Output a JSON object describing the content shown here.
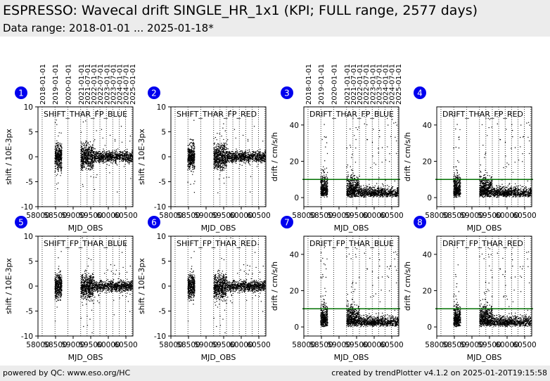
{
  "header": {
    "title": "ESPRESSO: Wavecal drift SINGLE_HR_1x1 (KPI; FULL range, 2577 days)",
    "subtitle": "Data range: 2018-01-01 ... 2025-01-18*"
  },
  "footer": {
    "left": "powered by QC: www.eso.org/HC",
    "right": "created by trendPlotter v4.1.2 on 2025-01-20T19:15:58"
  },
  "colors": {
    "header_bg": "#ececec",
    "badge": "#0000ee",
    "threshold_line": "#007000",
    "points": "#000000"
  },
  "date_ticks": [
    "2018-01-01",
    "2019-01-01",
    "2020-01-01",
    "2021-01-01",
    "2021-07-01",
    "2022-01-01",
    "2022-07-01",
    "2023-01-01",
    "2023-07-01",
    "2024-01-01",
    "2024-07-01",
    "2025-01-01"
  ],
  "date_ticks_upper_row": [
    "2018-01-01",
    "2019-01-01",
    "2020-01-01",
    "2021-01-01",
    "2021-07-01",
    "2022-01-01",
    "2022-07-01",
    "2023-01-01",
    "2023-07-01",
    "2024-01-01",
    "2024-07-01",
    "2025-01-01"
  ],
  "chart_data": [
    {
      "id": 1,
      "badge": "1",
      "type": "scatter",
      "title": "SHIFT_THAR_FP_BLUE",
      "xlabel": "MJD_OBS",
      "ylabel": "shift / 10E-3px",
      "xlim": [
        58000,
        60700
      ],
      "ylim": [
        -10,
        10
      ],
      "yticks": [
        -10,
        -5,
        0,
        5,
        10
      ],
      "xticks": [
        "58000",
        "58500",
        "59000",
        "59500",
        "60000",
        "60500"
      ],
      "kind": "shift",
      "threshold": null,
      "show_date_axis": true
    },
    {
      "id": 2,
      "badge": "2",
      "type": "scatter",
      "title": "SHIFT_THAR_FP_RED",
      "xlabel": "MJD_OBS",
      "ylabel": "shift / 10E-3px",
      "xlim": [
        58000,
        60700
      ],
      "ylim": [
        -10,
        10
      ],
      "yticks": [
        -10,
        -5,
        0,
        5,
        10
      ],
      "xticks": [
        "58000",
        "58500",
        "59000",
        "59500",
        "60000",
        "60500"
      ],
      "kind": "shift",
      "threshold": null,
      "show_date_axis": false
    },
    {
      "id": 3,
      "badge": "3",
      "type": "scatter",
      "title": "DRIFT_THAR_FP_BLUE",
      "xlabel": "MJD_OBS",
      "ylabel": "drift / cm/s/h",
      "xlim": [
        58000,
        60700
      ],
      "ylim": [
        -5,
        50
      ],
      "yticks": [
        0,
        20,
        40
      ],
      "xticks": [
        "58000",
        "58500",
        "59000",
        "59500",
        "60000",
        "60500"
      ],
      "kind": "drift",
      "threshold": 10,
      "show_date_axis": true
    },
    {
      "id": 4,
      "badge": "4",
      "type": "scatter",
      "title": "DRIFT_THAR_FP_RED",
      "xlabel": "MJD_OBS",
      "ylabel": "drift / cm/s/h",
      "xlim": [
        58000,
        60700
      ],
      "ylim": [
        -5,
        50
      ],
      "yticks": [
        0,
        20,
        40
      ],
      "xticks": [
        "58000",
        "58500",
        "59000",
        "59500",
        "60000",
        "60500"
      ],
      "kind": "drift",
      "threshold": 10,
      "show_date_axis": false
    },
    {
      "id": 5,
      "badge": "5",
      "type": "scatter",
      "title": "SHIFT_FP_THAR_BLUE",
      "xlabel": "MJD_OBS",
      "ylabel": "shift / 10E-3px",
      "xlim": [
        58000,
        60700
      ],
      "ylim": [
        -10,
        10
      ],
      "yticks": [
        -10,
        -5,
        0,
        5,
        10
      ],
      "xticks": [
        "58000",
        "58500",
        "59000",
        "59500",
        "60000",
        "60500"
      ],
      "kind": "shift",
      "threshold": null,
      "show_date_axis": false
    },
    {
      "id": 6,
      "badge": "6",
      "type": "scatter",
      "title": "SHIFT_FP_THAR_RED",
      "xlabel": "MJD_OBS",
      "ylabel": "shift / 10E-3px",
      "xlim": [
        58000,
        60700
      ],
      "ylim": [
        -10,
        10
      ],
      "yticks": [
        -10,
        -5,
        0,
        5,
        10
      ],
      "xticks": [
        "58000",
        "58500",
        "59000",
        "59500",
        "60000",
        "60500"
      ],
      "kind": "shift",
      "threshold": null,
      "show_date_axis": false
    },
    {
      "id": 7,
      "badge": "7",
      "type": "scatter",
      "title": "DRIFT_FP_THAR_BLUE",
      "xlabel": "MJD_OBS",
      "ylabel": "drift / cm/s/h",
      "xlim": [
        58000,
        60700
      ],
      "ylim": [
        -5,
        50
      ],
      "yticks": [
        0,
        20,
        40
      ],
      "xticks": [
        "58000",
        "58500",
        "59000",
        "59500",
        "60000",
        "60500"
      ],
      "kind": "drift",
      "threshold": 10,
      "show_date_axis": false
    },
    {
      "id": 8,
      "badge": "8",
      "type": "scatter",
      "title": "DRIFT_FP_THAR_RED",
      "xlabel": "MJD_OBS",
      "ylabel": "drift / cm/s/h",
      "xlim": [
        58000,
        60700
      ],
      "ylim": [
        -5,
        50
      ],
      "yticks": [
        0,
        20,
        40
      ],
      "xticks": [
        "58000",
        "58500",
        "59000",
        "59500",
        "60000",
        "60500"
      ],
      "kind": "drift",
      "threshold": 10,
      "show_date_axis": false
    }
  ]
}
